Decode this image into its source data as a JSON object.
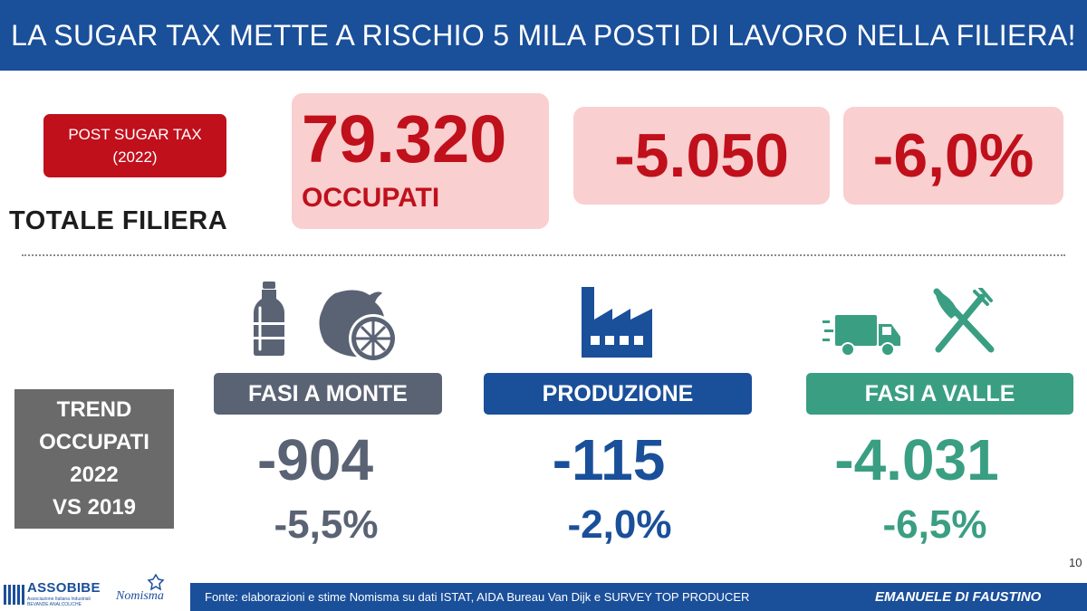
{
  "header": {
    "title": "LA SUGAR TAX METTE A RISCHIO 5 MILA POSTI DI LAVORO NELLA FILIERA!"
  },
  "badge": {
    "line1": "POST SUGAR TAX",
    "line2": "(2022)"
  },
  "totale_label": "TOTALE FILIERA",
  "stats": {
    "occupati_value": "79.320",
    "occupati_label": "OCCUPATI",
    "delta_value": "-5.050",
    "delta_pct": "-6,0%"
  },
  "trend": {
    "line1": "TREND",
    "line2": "OCCUPATI",
    "line3": "2022",
    "line4": "VS 2019"
  },
  "phases": {
    "monte": {
      "label": "FASI A MONTE",
      "value": "-904",
      "pct": "-5,5%",
      "icons": [
        "bottle-icon",
        "lemon-icon"
      ]
    },
    "produzione": {
      "label": "PRODUZIONE",
      "value": "-115",
      "pct": "-2,0%",
      "icons": [
        "factory-icon"
      ]
    },
    "valle": {
      "label": "FASI A VALLE",
      "value": "-4.031",
      "pct": "-6,5%",
      "icons": [
        "truck-icon",
        "fork-knife-icon"
      ]
    }
  },
  "colors": {
    "header": "#1a4f9a",
    "accent_red": "#c0101c",
    "stat_bg": "#f9cfcf",
    "monte": "#5a6374",
    "produzione": "#1a4f9a",
    "valle": "#3a9e82",
    "trend_bg": "#6a6a6a"
  },
  "page_number": "10",
  "footer": {
    "source": "Fonte: elaborazioni e stime Nomisma su dati ISTAT, AIDA Bureau Van Dijk e SURVEY TOP PRODUCER",
    "author": "EMANUELE DI FAUSTINO",
    "logo1": "ASSOBIBE",
    "logo1_sub": "Associazione Italiana Industriali BEVANDE ANALCOLICHE",
    "logo2": "Nomisma"
  }
}
